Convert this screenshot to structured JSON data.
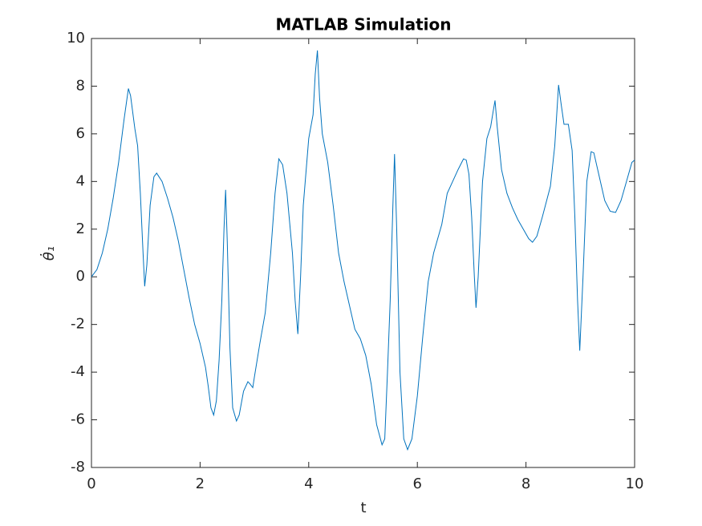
{
  "chart_data": {
    "type": "line",
    "title": "MATLAB Simulation",
    "xlabel": "t",
    "ylabel": "θ̇₁",
    "xlim": [
      0,
      10
    ],
    "ylim": [
      -8,
      10
    ],
    "xticks": [
      0,
      2,
      4,
      6,
      8,
      10
    ],
    "yticks": [
      -8,
      -6,
      -4,
      -2,
      0,
      2,
      4,
      6,
      8,
      10
    ],
    "grid": false,
    "series": [
      {
        "name": "theta1dot",
        "color": "#0072bd",
        "x": [
          0,
          0.1,
          0.2,
          0.3,
          0.4,
          0.5,
          0.6,
          0.68,
          0.72,
          0.8,
          0.85,
          0.9,
          0.95,
          0.98,
          1.02,
          1.08,
          1.15,
          1.2,
          1.3,
          1.4,
          1.5,
          1.6,
          1.7,
          1.8,
          1.9,
          2.0,
          2.1,
          2.15,
          2.2,
          2.25,
          2.3,
          2.35,
          2.4,
          2.44,
          2.47,
          2.5,
          2.55,
          2.6,
          2.67,
          2.72,
          2.8,
          2.88,
          2.92,
          2.97,
          3.0,
          3.1,
          3.2,
          3.3,
          3.38,
          3.45,
          3.52,
          3.6,
          3.7,
          3.75,
          3.8,
          3.85,
          3.9,
          4.0,
          4.08,
          4.12,
          4.16,
          4.2,
          4.25,
          4.35,
          4.45,
          4.55,
          4.65,
          4.75,
          4.85,
          4.95,
          5.05,
          5.15,
          5.25,
          5.35,
          5.4,
          5.45,
          5.5,
          5.55,
          5.58,
          5.62,
          5.68,
          5.75,
          5.82,
          5.9,
          6.0,
          6.1,
          6.2,
          6.3,
          6.45,
          6.55,
          6.65,
          6.75,
          6.85,
          6.9,
          6.95,
          7.0,
          7.05,
          7.08,
          7.12,
          7.2,
          7.28,
          7.35,
          7.4,
          7.43,
          7.47,
          7.55,
          7.65,
          7.75,
          7.85,
          7.95,
          8.05,
          8.12,
          8.2,
          8.3,
          8.45,
          8.53,
          8.6,
          8.65,
          8.7,
          8.78,
          8.85,
          8.9,
          8.95,
          8.99,
          9.05,
          9.12,
          9.2,
          9.25,
          9.35,
          9.45,
          9.55,
          9.65,
          9.75,
          9.85,
          9.95,
          10
        ],
        "values": [
          0,
          0.3,
          1,
          2,
          3.3,
          4.8,
          6.6,
          7.9,
          7.6,
          6.2,
          5.5,
          3.5,
          1,
          -0.4,
          0.5,
          3,
          4.2,
          4.35,
          4,
          3.3,
          2.5,
          1.5,
          0.3,
          -0.9,
          -2,
          -2.8,
          -3.8,
          -4.6,
          -5.5,
          -5.8,
          -5.2,
          -3.5,
          -1,
          2,
          3.65,
          1.5,
          -3,
          -5.5,
          -6.05,
          -5.8,
          -4.8,
          -4.4,
          -4.5,
          -4.65,
          -4.2,
          -2.8,
          -1.5,
          1,
          3.5,
          4.95,
          4.7,
          3.5,
          1,
          -1,
          -2.4,
          0,
          3,
          5.8,
          6.8,
          8.5,
          9.5,
          7.5,
          6,
          4.8,
          3,
          1,
          -0.2,
          -1.2,
          -2.2,
          -2.6,
          -3.3,
          -4.5,
          -6.2,
          -7.05,
          -6.8,
          -4,
          -1,
          3,
          5.15,
          2,
          -4,
          -6.8,
          -7.25,
          -6.8,
          -5,
          -2.5,
          -0.2,
          1,
          2.2,
          3.5,
          4,
          4.5,
          4.95,
          4.9,
          4.3,
          2.5,
          0,
          -1.3,
          0,
          4,
          5.8,
          6.3,
          7,
          7.4,
          6.3,
          4.5,
          3.5,
          2.9,
          2.4,
          2,
          1.6,
          1.45,
          1.7,
          2.5,
          3.8,
          5.5,
          8.05,
          7.2,
          6.4,
          6.4,
          5.3,
          2.5,
          -1,
          -3.1,
          0,
          4,
          5.25,
          5.2,
          4.2,
          3.2,
          2.75,
          2.7,
          3.2,
          4,
          4.8,
          4.9
        ]
      }
    ]
  }
}
